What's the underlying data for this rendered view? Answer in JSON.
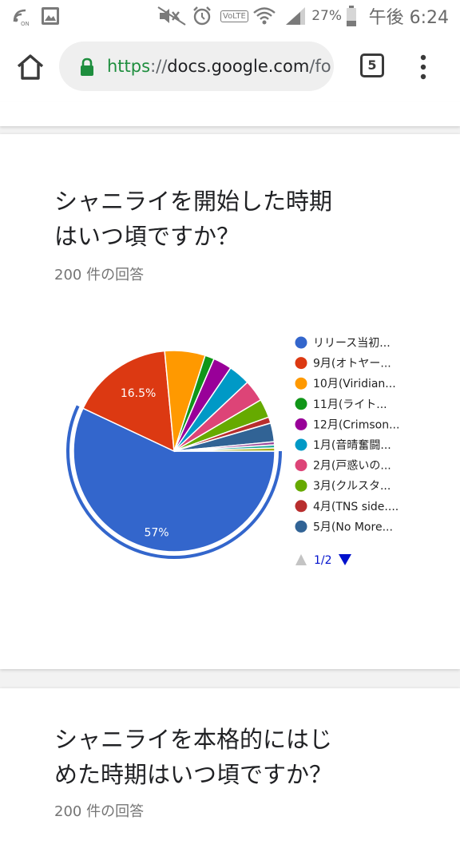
{
  "status_bar": {
    "battery": "27%",
    "time": "午後 6:24",
    "volte": "VoLTE",
    "nfc_label": "ON"
  },
  "browser": {
    "url_scheme": "https",
    "url_sep": "://",
    "url_host": "docs.google.com",
    "url_path": "/fo",
    "tab_count": "5",
    "colors": {
      "lock": "#1e8e3e"
    }
  },
  "question1": {
    "title": "シャニライを開始した時期\nはいつ頃ですか？",
    "response_count": "200 件の回答",
    "pager": "1/2"
  },
  "question2": {
    "title": "シャニライを本格的にはじ\nめた時期はいつ頃ですか？",
    "response_count": "200 件の回答"
  },
  "chart_data": {
    "type": "pie",
    "values": [
      57,
      16.5,
      6.5,
      1.5,
      3,
      3.5,
      3.5,
      3,
      1,
      3,
      0.5,
      0.5,
      0.5
    ],
    "slice_labels": [
      "57%",
      "16.5%",
      "",
      "",
      "",
      "",
      "",
      "",
      "",
      "",
      "",
      "",
      ""
    ],
    "colors": [
      "#3366cc",
      "#dc3912",
      "#ff9900",
      "#109618",
      "#990099",
      "#0099c6",
      "#dd4477",
      "#66aa00",
      "#b82e2e",
      "#316395",
      "#994499",
      "#22aa99",
      "#aaaa11"
    ],
    "legend": [
      {
        "label": "リリース当初...",
        "color": "#3366cc"
      },
      {
        "label": "9月(オトヤー...",
        "color": "#dc3912"
      },
      {
        "label": "10月(Viridian...",
        "color": "#ff9900"
      },
      {
        "label": "11月(ライト...",
        "color": "#109618"
      },
      {
        "label": "12月(Crimson...",
        "color": "#990099"
      },
      {
        "label": "1月(音晴奮闘...",
        "color": "#0099c6"
      },
      {
        "label": "2月(戸惑いの...",
        "color": "#dd4477"
      },
      {
        "label": "3月(クルスタ...",
        "color": "#66aa00"
      },
      {
        "label": "4月(TNS side....",
        "color": "#b82e2e"
      },
      {
        "label": "5月(No More...",
        "color": "#316395"
      }
    ],
    "highlighted": "リリース当初..."
  }
}
